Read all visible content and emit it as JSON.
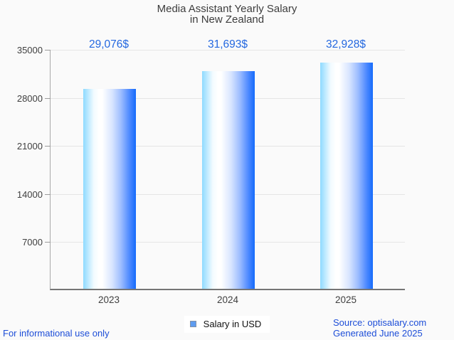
{
  "title": {
    "line1": "Media Assistant Yearly Salary",
    "line2": "in New Zealand"
  },
  "legend": {
    "label": "Salary in USD"
  },
  "footer": {
    "left": "For informational use only",
    "source": "Source: optisalary.com",
    "generated": "Generated June 2025"
  },
  "colors": {
    "background": "#fafafa",
    "title_text": "#3d3d3d",
    "axis_text": "#3f3f3f",
    "gridline": "#e5e5e5",
    "value_label_blue": "#2468e0",
    "footer_blue": "#1d4ed8",
    "bar_gradient_light": "#8edaff",
    "bar_gradient_mid": "#ffffff",
    "bar_gradient_dark": "#156bfb",
    "legend_swatch_fill": "#5e9cf0",
    "legend_swatch_border": "#8492a6"
  },
  "chart_data": {
    "type": "bar",
    "title": "Media Assistant Yearly Salary in New Zealand",
    "categories": [
      "2023",
      "2024",
      "2025"
    ],
    "values": [
      29076,
      31693,
      32928
    ],
    "value_labels": [
      "29,076$",
      "31,693$",
      "32,928$"
    ],
    "series": [
      {
        "name": "Salary in USD",
        "values": [
          29076,
          31693,
          32928
        ]
      }
    ],
    "yticks": [
      7000,
      14000,
      21000,
      28000,
      35000
    ],
    "ylim": [
      0,
      35000
    ],
    "xlabel": "",
    "ylabel": "",
    "grid": true,
    "legend_position": "bottom"
  }
}
